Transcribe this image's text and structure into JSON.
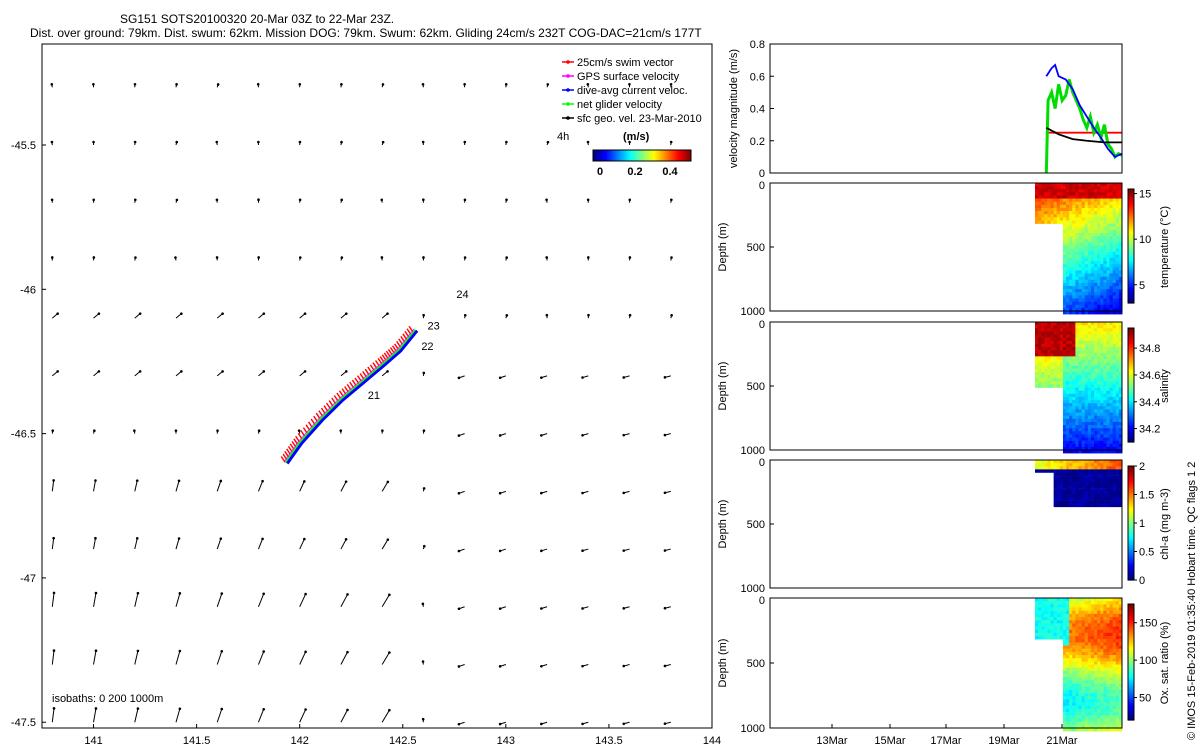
{
  "header": {
    "title": "SG151 SOTS20100320 20-Mar 03Z to 22-Mar 23Z.",
    "subtitle": "Dist. over ground: 79km. Dist. swum: 62km. Mission DOG: 79km. Swum: 62km. Gliding 24cm/s 232T COG-DAC=21cm/s 177T"
  },
  "footer": {
    "credit": "© IMOS 15-Feb-2019 01:35:40 Hobart time. QC flags 1  2",
    "isobaths": "isobaths: 0   200  1000m"
  },
  "chart_data": [
    {
      "id": "map",
      "type": "scatter",
      "x_ticks": [
        "141",
        "141.5",
        "142",
        "142.5",
        "143",
        "143.5",
        "144"
      ],
      "y_ticks": [
        "-45.5",
        "-46",
        "-46.5",
        "-47",
        "-47.5"
      ],
      "xlim": [
        140.75,
        144.0
      ],
      "ylim": [
        -47.52,
        -45.15
      ],
      "legend": {
        "placement": "top-right",
        "entries": [
          {
            "label": "25cm/s swim vector",
            "color": "#ff0000"
          },
          {
            "label": "GPS surface velocity",
            "color": "#ff00ff"
          },
          {
            "label": "dive-avg current veloc.",
            "color": "#0000ff"
          },
          {
            "label": "net glider velocity",
            "color": "#00ff00"
          },
          {
            "label": "sfc geo. vel. 23-Mar-2010",
            "color": "#000000"
          }
        ]
      },
      "scale_label": "4h",
      "colorbar": {
        "unit": "(m/s)",
        "ticks": [
          "0",
          "0.2",
          "0.4"
        ]
      },
      "track": {
        "x": [
          141.93,
          142.0,
          142.1,
          142.2,
          142.3,
          142.4,
          142.48,
          142.56
        ],
        "y": [
          -46.6,
          -46.53,
          -46.45,
          -46.38,
          -46.32,
          -46.26,
          -46.21,
          -46.14
        ]
      },
      "day_labels": [
        {
          "text": "21",
          "x": 142.33,
          "y": -46.38
        },
        {
          "text": "22",
          "x": 142.59,
          "y": -46.21
        },
        {
          "text": "23",
          "x": 142.62,
          "y": -46.14
        },
        {
          "text": "24",
          "x": 142.76,
          "y": -46.03
        }
      ]
    },
    {
      "id": "velocity",
      "type": "line",
      "ylabel": "velocity magnitude (m/s)",
      "y_ticks": [
        "0",
        "0.2",
        "0.4",
        "0.6",
        "0.8"
      ],
      "ylim": [
        0,
        0.8
      ],
      "series": [
        {
          "color": "#ff0000",
          "x": [
            0.785,
            1.0
          ],
          "y": [
            0.25,
            0.25
          ]
        },
        {
          "color": "#00dd00",
          "x": [
            0.785,
            0.79,
            0.8,
            0.81,
            0.82,
            0.83,
            0.84,
            0.85,
            0.86,
            0.87,
            0.88,
            0.89,
            0.9,
            0.91,
            0.92,
            0.93,
            0.94,
            0.95,
            0.96,
            0.97,
            0.98,
            0.99,
            1.0
          ],
          "y": [
            0.0,
            0.45,
            0.5,
            0.4,
            0.55,
            0.45,
            0.48,
            0.58,
            0.5,
            0.45,
            0.4,
            0.33,
            0.28,
            0.35,
            0.25,
            0.3,
            0.22,
            0.3,
            0.18,
            0.15,
            0.1,
            0.12,
            0.11
          ]
        },
        {
          "color": "#0000ff",
          "x": [
            0.785,
            0.8,
            0.81,
            0.82,
            0.84,
            0.86,
            0.88,
            0.9,
            0.92,
            0.94,
            0.96,
            0.98,
            1.0
          ],
          "y": [
            0.6,
            0.65,
            0.67,
            0.6,
            0.58,
            0.52,
            0.42,
            0.35,
            0.28,
            0.22,
            0.15,
            0.1,
            0.12
          ]
        },
        {
          "color": "#000000",
          "x": [
            0.785,
            0.82,
            0.86,
            0.9,
            0.95,
            1.0
          ],
          "y": [
            0.28,
            0.24,
            0.21,
            0.2,
            0.19,
            0.19
          ]
        }
      ]
    },
    {
      "id": "temperature",
      "type": "heatmap",
      "ylabel": "Depth (m)",
      "y_ticks": [
        "0",
        "500",
        "1000"
      ],
      "ylim": [
        1000,
        0
      ],
      "colorbar": {
        "label": "temperature (°C)",
        "ticks": [
          "5",
          "10",
          "15"
        ],
        "min": 3,
        "max": 15.5
      }
    },
    {
      "id": "salinity",
      "type": "heatmap",
      "ylabel": "Depth (m)",
      "y_ticks": [
        "0",
        "500",
        "1000"
      ],
      "ylim": [
        1000,
        0
      ],
      "colorbar": {
        "label": "salinity",
        "ticks": [
          "34.2",
          "34.4",
          "34.6",
          "34.8"
        ],
        "min": 34.1,
        "max": 34.95
      }
    },
    {
      "id": "chla",
      "type": "heatmap",
      "ylabel": "Depth (m)",
      "y_ticks": [
        "0",
        "500",
        "1000"
      ],
      "ylim": [
        1000,
        0
      ],
      "colorbar": {
        "label": "chl-a (mg m-3)",
        "ticks": [
          "0",
          "0.5",
          "1",
          "1.5",
          "2"
        ],
        "min": 0,
        "max": 2
      }
    },
    {
      "id": "oxygen",
      "type": "heatmap",
      "ylabel": "Depth (m)",
      "y_ticks": [
        "0",
        "500",
        "1000"
      ],
      "ylim": [
        1000,
        0
      ],
      "x_ticks": [
        "13Mar",
        "15Mar",
        "17Mar",
        "19Mar",
        "21Mar"
      ],
      "colorbar": {
        "label": "Ox. sat. ratio (%)",
        "ticks": [
          "50",
          "100",
          "150"
        ],
        "min": 20,
        "max": 175
      }
    }
  ]
}
